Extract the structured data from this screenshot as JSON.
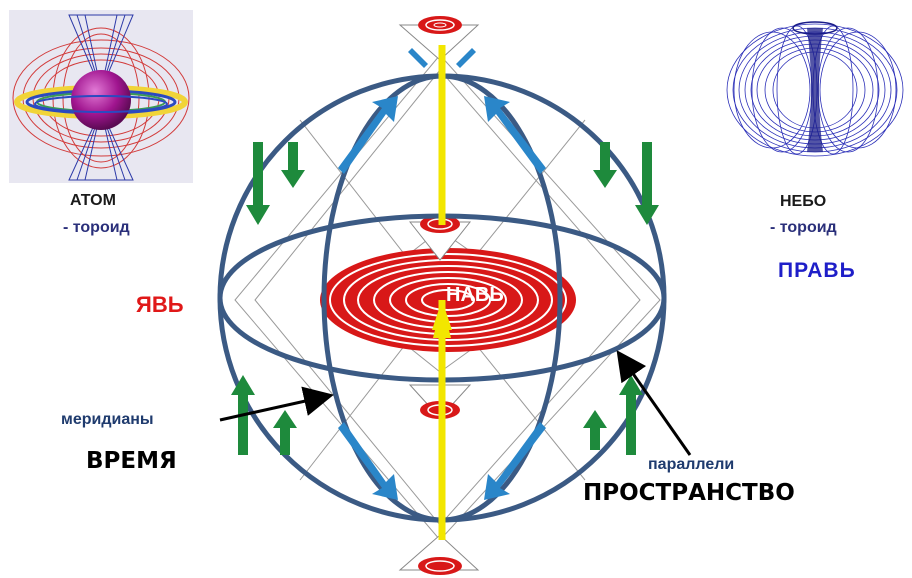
{
  "labels": {
    "atom_title": "АТОМ",
    "atom_subtitle": "- тороид",
    "sky_title": "НЕБО",
    "sky_subtitle": "- тороид",
    "prav": "ПРАВЬ",
    "yav": "ЯВЬ",
    "nav": "НАВЬ",
    "meridians_title": "меридианы",
    "meridians_subtitle": "ВРЕМЯ",
    "parallels_title": "параллели",
    "parallels_subtitle": "ПРОСТРАНСТВО"
  },
  "colors": {
    "sphere_outline": "#3b5a84",
    "axis": "#f2e600",
    "vortex": "#d81818",
    "flow_arrow": "#2a86c9",
    "field_arrow": "#1e8a3c",
    "prav": "#1e1ec8",
    "yav": "#e01818",
    "atom_core": "#a0158f",
    "torus_mesh": "#2b2fb8"
  },
  "icons": {
    "atom_picture": "atom-toroid-image",
    "sky_picture": "sky-toroid-image",
    "flow_arrows": "blue-arrow-icon",
    "field_arrows": "green-arrow-icon",
    "pointer": "black-pointer-arrow-icon"
  }
}
